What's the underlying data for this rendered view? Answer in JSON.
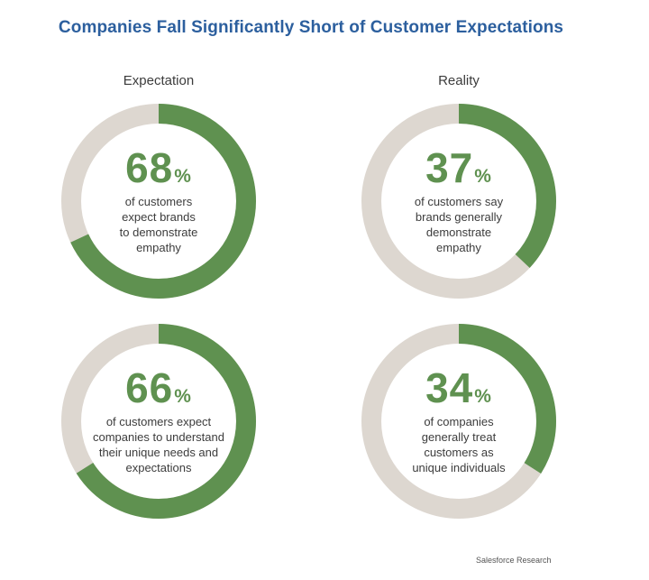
{
  "title": "Companies Fall Significantly Short of Customer Expectations",
  "column_labels": {
    "left": "Expectation",
    "right": "Reality"
  },
  "source": "Salesforce Research",
  "colors": {
    "filled": "#5f9150",
    "remainder": "#ddd7d0",
    "title": "#2c5f9e"
  },
  "chart_data": [
    {
      "type": "pie",
      "style": "donut",
      "column": "Expectation",
      "value": 68,
      "value_label": "68",
      "unit": "%",
      "description": [
        "of customers",
        "expect brands",
        "to demonstrate",
        "empathy"
      ]
    },
    {
      "type": "pie",
      "style": "donut",
      "column": "Reality",
      "value": 37,
      "value_label": "37",
      "unit": "%",
      "description": [
        "of customers say",
        "brands generally",
        "demonstrate",
        "empathy"
      ]
    },
    {
      "type": "pie",
      "style": "donut",
      "column": "Expectation",
      "value": 66,
      "value_label": "66",
      "unit": "%",
      "description": [
        "of customers expect",
        "companies to understand",
        "their unique needs and",
        "expectations"
      ]
    },
    {
      "type": "pie",
      "style": "donut",
      "column": "Reality",
      "value": 34,
      "value_label": "34",
      "unit": "%",
      "description": [
        "of companies",
        "generally treat",
        "customers as",
        "unique individuals"
      ]
    }
  ]
}
